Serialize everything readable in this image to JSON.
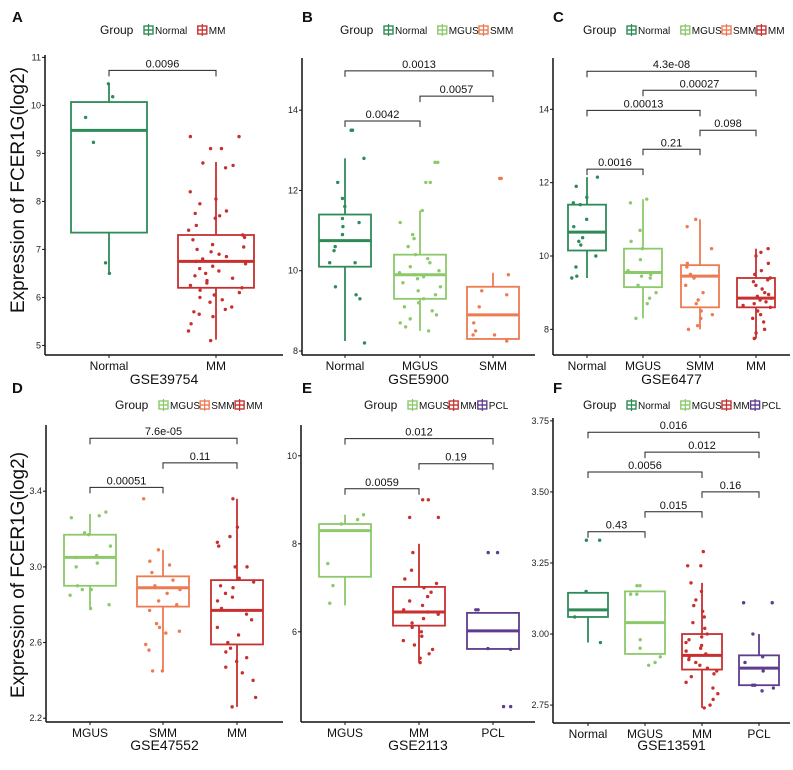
{
  "ylabel": "Expression of FCER1G(log2)",
  "legend_title": "Group",
  "colors": {
    "Normal": "#2e8b57",
    "MGUS": "#8cc96b",
    "SMM": "#ee7a52",
    "MM": "#c7302f",
    "PCL": "#5e3c8e"
  },
  "chart_data": [
    {
      "panel": "A",
      "type": "boxplot",
      "title": "GSE39754",
      "categories": [
        "Normal",
        "MM"
      ],
      "ylim": [
        4.8,
        11.05
      ],
      "yticks": [
        "5",
        "6",
        "7",
        "8",
        "9",
        "10",
        "11"
      ],
      "boxes": [
        {
          "q1": 7.35,
          "median": 9.48,
          "q3": 10.07,
          "low": 6.5,
          "high": 10.45,
          "points": [
            10.45,
            10.18,
            9.75,
            9.23,
            6.72,
            6.5
          ]
        },
        {
          "q1": 6.2,
          "median": 6.75,
          "q3": 7.3,
          "low": 5.12,
          "high": 8.82,
          "points": [
            9.35,
            9.35,
            9.1,
            9.1,
            8.8,
            8.75,
            8.7,
            8.2,
            8.05,
            7.95,
            7.8,
            7.75,
            7.7,
            7.65,
            7.5,
            7.4,
            7.3,
            7.25,
            7.2,
            7.1,
            7.05,
            7.0,
            6.95,
            6.9,
            6.85,
            6.8,
            6.75,
            6.7,
            6.65,
            6.6,
            6.55,
            6.5,
            6.45,
            6.4,
            6.35,
            6.3,
            6.25,
            6.2,
            6.15,
            6.1,
            6.05,
            6.0,
            5.95,
            5.9,
            5.8,
            5.75,
            5.7,
            5.65,
            5.6,
            5.45,
            5.3,
            5.1
          ]
        }
      ],
      "comparisons": [
        {
          "groups": [
            "Normal",
            "MM"
          ],
          "p": "0.0096",
          "y": 10.73
        }
      ]
    },
    {
      "panel": "B",
      "type": "boxplot",
      "title": "GSE5900",
      "categories": [
        "Normal",
        "MGUS",
        "SMM"
      ],
      "ylim": [
        7.9,
        15.3
      ],
      "yticks": [
        "8",
        "10",
        "12",
        "14"
      ],
      "boxes": [
        {
          "q1": 10.1,
          "median": 10.75,
          "q3": 11.4,
          "low": 8.25,
          "high": 12.8,
          "points": [
            13.5,
            13.5,
            12.8,
            12.2,
            11.8,
            11.6,
            11.3,
            11.2,
            11.1,
            10.9,
            10.6,
            10.5,
            10.2,
            10.2,
            9.6,
            9.4,
            9.3,
            8.2
          ]
        },
        {
          "q1": 9.3,
          "median": 9.9,
          "q3": 10.4,
          "low": 8.5,
          "high": 11.5,
          "points": [
            12.7,
            12.7,
            12.2,
            12.2,
            11.5,
            11.2,
            10.9,
            10.8,
            10.6,
            10.4,
            10.3,
            10.2,
            10.1,
            10.0,
            9.95,
            9.9,
            9.85,
            9.8,
            9.7,
            9.6,
            9.5,
            9.4,
            9.3,
            9.2,
            9.1,
            9.0,
            8.9,
            8.8,
            8.7,
            8.6,
            8.5
          ]
        },
        {
          "q1": 8.3,
          "median": 8.9,
          "q3": 9.6,
          "low": 8.3,
          "high": 9.95,
          "points": [
            12.3,
            12.3,
            9.9,
            9.5,
            9.4,
            9.1,
            8.7,
            8.5,
            8.4,
            8.4,
            8.25
          ]
        }
      ],
      "comparisons": [
        {
          "groups": [
            "Normal",
            "SMM"
          ],
          "p": "0.0013",
          "y": 14.98
        },
        {
          "groups": [
            "MGUS",
            "SMM"
          ],
          "p": "0.0057",
          "y": 14.35
        },
        {
          "groups": [
            "Normal",
            "MGUS"
          ],
          "p": "0.0042",
          "y": 13.73
        }
      ]
    },
    {
      "panel": "C",
      "type": "boxplot",
      "title": "GSE6477",
      "categories": [
        "Normal",
        "MGUS",
        "SMM",
        "MM"
      ],
      "ylim": [
        7.3,
        15.4
      ],
      "yticks": [
        "8",
        "10",
        "12",
        "14"
      ],
      "boxes": [
        {
          "q1": 10.15,
          "median": 10.65,
          "q3": 11.4,
          "low": 9.4,
          "high": 12.15,
          "points": [
            12.15,
            11.9,
            11.6,
            11.45,
            11.4,
            11.0,
            10.8,
            10.5,
            10.4,
            10.3,
            10.0,
            9.7,
            9.45,
            9.4
          ]
        },
        {
          "q1": 9.15,
          "median": 9.55,
          "q3": 10.2,
          "low": 8.3,
          "high": 11.55,
          "points": [
            11.55,
            11.45,
            10.7,
            10.4,
            10.2,
            9.9,
            9.6,
            9.5,
            9.45,
            9.4,
            9.2,
            9.0,
            8.85,
            8.7,
            8.3
          ]
        },
        {
          "q1": 8.6,
          "median": 9.45,
          "q3": 9.75,
          "low": 8.0,
          "high": 11.0,
          "points": [
            11.0,
            10.8,
            10.2,
            9.8,
            9.7,
            9.5,
            9.4,
            9.2,
            9.0,
            8.8,
            8.7,
            8.5,
            8.4,
            8.3,
            8.1,
            8.0
          ]
        },
        {
          "q1": 8.6,
          "median": 8.85,
          "q3": 9.4,
          "low": 7.75,
          "high": 10.2,
          "points": [
            10.2,
            10.1,
            10.0,
            9.8,
            9.6,
            9.5,
            9.4,
            9.35,
            9.3,
            9.2,
            9.1,
            9.0,
            8.95,
            8.9,
            8.85,
            8.8,
            8.75,
            8.7,
            8.65,
            8.6,
            8.5,
            8.4,
            8.3,
            8.2,
            8.0,
            7.9,
            7.75
          ]
        }
      ],
      "comparisons": [
        {
          "groups": [
            "Normal",
            "MM"
          ],
          "p": "4.3e-08",
          "y": 15.04
        },
        {
          "groups": [
            "MGUS",
            "MM"
          ],
          "p": "0.00027",
          "y": 14.52
        },
        {
          "groups": [
            "Normal",
            "SMM"
          ],
          "p": "0.00013",
          "y": 13.97
        },
        {
          "groups": [
            "SMM",
            "MM"
          ],
          "p": "0.098",
          "y": 13.43
        },
        {
          "groups": [
            "MGUS",
            "SMM"
          ],
          "p": "0.21",
          "y": 12.91
        },
        {
          "groups": [
            "Normal",
            "MGUS"
          ],
          "p": "0.0016",
          "y": 12.37
        }
      ]
    },
    {
      "panel": "D",
      "type": "boxplot",
      "title": "GSE47552",
      "categories": [
        "MGUS",
        "SMM",
        "MM"
      ],
      "ylim": [
        2.18,
        3.75
      ],
      "yticks": [
        "2.2",
        "2.6",
        "3.0",
        "3.4"
      ],
      "boxes": [
        {
          "q1": 2.9,
          "median": 3.05,
          "q3": 3.17,
          "low": 2.78,
          "high": 3.28,
          "points": [
            3.29,
            3.27,
            3.26,
            3.18,
            3.17,
            3.11,
            3.06,
            3.05,
            3.02,
            3.0,
            2.9,
            2.88,
            2.88,
            2.85,
            2.8,
            2.78
          ]
        },
        {
          "q1": 2.79,
          "median": 2.89,
          "q3": 2.95,
          "low": 2.45,
          "high": 3.09,
          "points": [
            3.36,
            3.09,
            3.03,
            3.01,
            2.97,
            2.93,
            2.9,
            2.88,
            2.86,
            2.82,
            2.8,
            2.77,
            2.7,
            2.68,
            2.66,
            2.65,
            2.59,
            2.56,
            2.45,
            2.45
          ]
        },
        {
          "q1": 2.59,
          "median": 2.77,
          "q3": 2.93,
          "low": 2.26,
          "high": 3.36,
          "points": [
            3.36,
            3.21,
            3.16,
            3.13,
            3.11,
            3.0,
            3.0,
            2.94,
            2.92,
            2.9,
            2.89,
            2.86,
            2.84,
            2.82,
            2.78,
            2.75,
            2.72,
            2.68,
            2.64,
            2.6,
            2.57,
            2.55,
            2.52,
            2.5,
            2.47,
            2.44,
            2.4,
            2.31,
            2.26
          ]
        }
      ],
      "comparisons": [
        {
          "groups": [
            "MGUS",
            "MM"
          ],
          "p": "7.6e-05",
          "y": 3.68
        },
        {
          "groups": [
            "SMM",
            "MM"
          ],
          "p": "0.11",
          "y": 3.55
        },
        {
          "groups": [
            "MGUS",
            "SMM"
          ],
          "p": "0.00051",
          "y": 3.42
        }
      ]
    },
    {
      "panel": "E",
      "type": "boxplot",
      "title": "GSE2113",
      "categories": [
        "MGUS",
        "MM",
        "PCL"
      ],
      "ylim": [
        3.95,
        10.7
      ],
      "yticks": [
        "6",
        "8",
        "10"
      ],
      "boxes": [
        {
          "q1": 7.25,
          "median": 8.3,
          "q3": 8.45,
          "low": 6.6,
          "high": 8.66,
          "points": [
            8.66,
            8.55,
            8.45,
            7.55,
            7.05,
            6.65
          ]
        },
        {
          "q1": 6.14,
          "median": 6.45,
          "q3": 7.02,
          "low": 5.3,
          "high": 8.0,
          "points": [
            9.0,
            9.0,
            8.6,
            8.6,
            7.8,
            7.4,
            7.2,
            7.1,
            7.0,
            6.9,
            6.8,
            6.7,
            6.6,
            6.5,
            6.45,
            6.4,
            6.3,
            6.2,
            6.1,
            6.0,
            5.9,
            5.8,
            5.7,
            5.6,
            5.5,
            5.4,
            5.3
          ]
        },
        {
          "q1": 5.61,
          "median": 6.02,
          "q3": 6.43,
          "low": 5.61,
          "high": 6.43,
          "points": [
            7.8,
            7.8,
            6.5,
            6.5,
            5.62,
            5.6,
            4.3,
            4.3
          ]
        }
      ],
      "comparisons": [
        {
          "groups": [
            "MGUS",
            "PCL"
          ],
          "p": "0.012",
          "y": 10.39
        },
        {
          "groups": [
            "MM",
            "PCL"
          ],
          "p": "0.19",
          "y": 9.82
        },
        {
          "groups": [
            "MGUS",
            "MM"
          ],
          "p": "0.0059",
          "y": 9.25
        }
      ]
    },
    {
      "panel": "F",
      "type": "boxplot",
      "title": "GSE13591",
      "categories": [
        "Normal",
        "MGUS",
        "MM",
        "PCL"
      ],
      "ylim": [
        2.687,
        3.76
      ],
      "yticks": [
        "2.75",
        "3.00",
        "3.25",
        "3.50",
        "3.75"
      ],
      "boxes": [
        {
          "q1": 3.06,
          "median": 3.085,
          "q3": 3.145,
          "low": 2.97,
          "high": 3.145,
          "points": [
            3.33,
            3.33,
            3.15,
            3.06,
            2.97
          ]
        },
        {
          "q1": 2.93,
          "median": 3.04,
          "q3": 3.15,
          "low": 2.93,
          "high": 3.15,
          "points": [
            3.17,
            3.17,
            3.14,
            3.14,
            2.98,
            2.95,
            2.92,
            2.9,
            2.89
          ]
        },
        {
          "q1": 2.875,
          "median": 2.925,
          "q3": 3.0,
          "low": 2.74,
          "high": 3.18,
          "points": [
            3.29,
            3.24,
            3.24,
            3.18,
            3.15,
            3.12,
            3.1,
            3.08,
            3.06,
            3.04,
            3.02,
            3.0,
            2.99,
            2.98,
            2.97,
            2.96,
            2.95,
            2.94,
            2.93,
            2.92,
            2.91,
            2.9,
            2.89,
            2.88,
            2.87,
            2.86,
            2.85,
            2.83,
            2.81,
            2.79,
            2.77,
            2.75,
            2.74
          ]
        },
        {
          "q1": 2.82,
          "median": 2.88,
          "q3": 2.925,
          "low": 2.82,
          "high": 3.0,
          "points": [
            3.11,
            3.11,
            3.0,
            2.92,
            2.9,
            2.87,
            2.82,
            2.82,
            2.81,
            2.8
          ]
        }
      ],
      "comparisons": [
        {
          "groups": [
            "Normal",
            "PCL"
          ],
          "p": "0.016",
          "y": 3.71
        },
        {
          "groups": [
            "MGUS",
            "PCL"
          ],
          "p": "0.012",
          "y": 3.64
        },
        {
          "groups": [
            "Normal",
            "MM"
          ],
          "p": "0.0056",
          "y": 3.57
        },
        {
          "groups": [
            "MM",
            "PCL"
          ],
          "p": "0.16",
          "y": 3.5
        },
        {
          "groups": [
            "MGUS",
            "MM"
          ],
          "p": "0.015",
          "y": 3.43
        },
        {
          "groups": [
            "Normal",
            "MGUS"
          ],
          "p": "0.43",
          "y": 3.36
        }
      ]
    }
  ]
}
